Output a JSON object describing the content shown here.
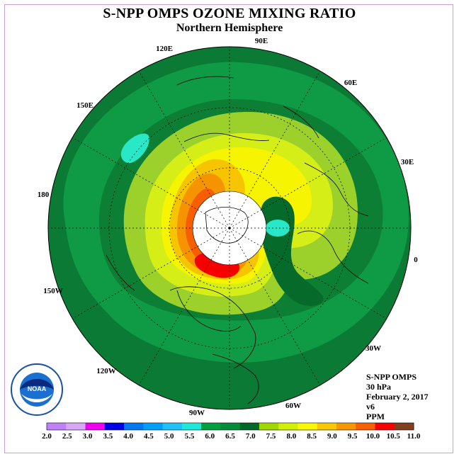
{
  "title": "S-NPP OMPS OZONE MIXING RATIO",
  "subtitle": "Northern Hemisphere",
  "info": {
    "instrument": "S-NPP OMPS",
    "level": "30 hPa",
    "date": "February 2, 2017",
    "version": "v6",
    "units": "PPM"
  },
  "longitude_labels": [
    "90E",
    "60E",
    "30E",
    "0",
    "30W",
    "60W",
    "90W",
    "120W",
    "150W",
    "180",
    "150E",
    "120E"
  ],
  "colorbar": {
    "ticks": [
      "2.0",
      "2.5",
      "3.0",
      "3.5",
      "4.0",
      "4.5",
      "5.0",
      "5.5",
      "6.0",
      "6.5",
      "7.0",
      "7.5",
      "8.0",
      "8.5",
      "9.0",
      "9.5",
      "10.0",
      "10.5",
      "11.0"
    ],
    "colors": [
      "#c080f8",
      "#d8a8f8",
      "#f000f0",
      "#0000e8",
      "#0078f0",
      "#00a0f8",
      "#20c0f8",
      "#20e8d8",
      "#00a040",
      "#008c38",
      "#006828",
      "#a0d800",
      "#d0f000",
      "#f8f800",
      "#f8c800",
      "#f89800",
      "#f86000",
      "#f80000",
      "#804020"
    ]
  },
  "logo_text": "NOAA"
}
